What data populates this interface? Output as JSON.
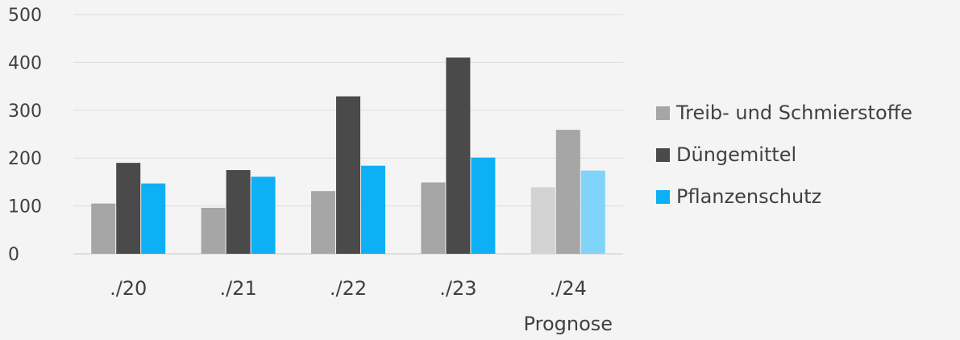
{
  "chart_data": {
    "type": "bar",
    "categories": [
      "./20",
      "./21",
      "./22",
      "./23",
      "./24"
    ],
    "category_notes": [
      "",
      "",
      "",
      "",
      "Prognose"
    ],
    "forecast_category_index": 4,
    "series": [
      {
        "name": "Treib- und Schmierstoffe",
        "values": [
          105,
          96,
          131,
          149,
          139
        ],
        "color": "#a6a6a6",
        "forecast_color": "#d3d3d3"
      },
      {
        "name": "Düngemittel",
        "values": [
          190,
          175,
          329,
          410,
          259
        ],
        "color": "#4a4a4a",
        "forecast_color": "#a6a6a6"
      },
      {
        "name": "Pflanzenschutz",
        "values": [
          147,
          161,
          184,
          201,
          174
        ],
        "color": "#0eb0f5",
        "forecast_color": "#80d4fa"
      }
    ],
    "yticks": [
      "0",
      "100",
      "200",
      "300",
      "400",
      "500"
    ],
    "ylim": [
      0,
      500
    ],
    "grid": true,
    "legend_position": "right",
    "title": "",
    "xlabel": "",
    "ylabel": ""
  }
}
